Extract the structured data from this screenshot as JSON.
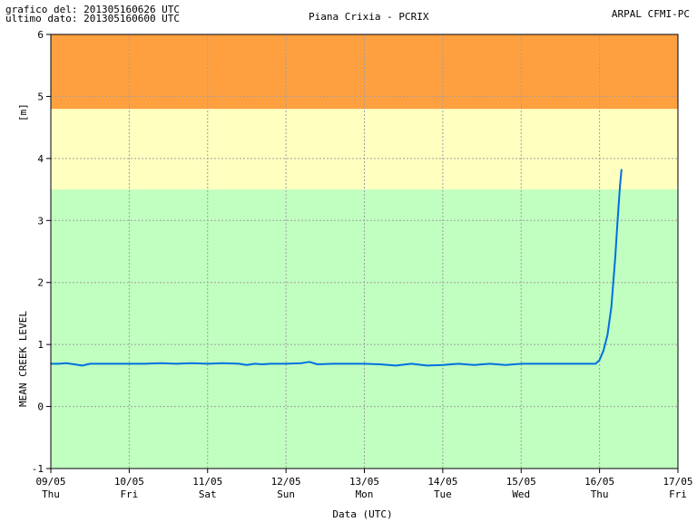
{
  "header": {
    "chart_date_label": "grafico del: 201305160626 UTC",
    "last_data_label": "ultimo dato: 201305160600 UTC",
    "station": "Piana Crixia - PCRIX",
    "organization": "ARPAL CFMI-PC"
  },
  "colors": {
    "zone_green": "#c0ffc0",
    "zone_yellow": "#ffffc0",
    "zone_orange": "#ffa040",
    "series_line": "#0070e0",
    "grid": "#a0a0a0"
  },
  "chart_data": {
    "type": "line",
    "title": "Piana Crixia - PCRIX",
    "xlabel": "Data (UTC)",
    "ylabel_unit": "[m]",
    "ylabel": "MEAN CREEK LEVEL",
    "xlim": [
      0,
      8
    ],
    "ylim": [
      -1,
      6
    ],
    "grid": true,
    "y_ticks": [
      -1,
      0,
      1,
      2,
      3,
      4,
      5,
      6
    ],
    "x_ticks": [
      {
        "x": 0,
        "date": "09/05",
        "day": "Thu"
      },
      {
        "x": 1,
        "date": "10/05",
        "day": "Fri"
      },
      {
        "x": 2,
        "date": "11/05",
        "day": "Sat"
      },
      {
        "x": 3,
        "date": "12/05",
        "day": "Sun"
      },
      {
        "x": 4,
        "date": "13/05",
        "day": "Mon"
      },
      {
        "x": 5,
        "date": "14/05",
        "day": "Tue"
      },
      {
        "x": 6,
        "date": "15/05",
        "day": "Wed"
      },
      {
        "x": 7,
        "date": "16/05",
        "day": "Thu"
      },
      {
        "x": 8,
        "date": "17/05",
        "day": "Fri"
      }
    ],
    "threshold_bands": [
      {
        "from": -1,
        "to": 3.5,
        "color": "#c0ffc0"
      },
      {
        "from": 3.5,
        "to": 4.8,
        "color": "#ffffc0"
      },
      {
        "from": 4.8,
        "to": 6,
        "color": "#ffa040"
      }
    ],
    "series": [
      {
        "x": [
          0,
          0.1,
          0.2,
          0.3,
          0.4,
          0.5,
          0.6,
          0.8,
          1.0,
          1.2,
          1.4,
          1.6,
          1.8,
          2.0,
          2.2,
          2.4,
          2.5,
          2.6,
          2.7,
          2.8,
          3.0,
          3.2,
          3.3,
          3.4,
          3.6,
          3.8,
          4.0,
          4.2,
          4.4,
          4.6,
          4.8,
          5.0,
          5.2,
          5.4,
          5.6,
          5.8,
          6.0,
          6.2,
          6.4,
          6.6,
          6.8,
          6.9,
          6.95,
          7.0,
          7.05,
          7.1,
          7.15,
          7.2,
          7.23,
          7.26,
          7.28
        ],
        "y": [
          0.69,
          0.69,
          0.7,
          0.68,
          0.66,
          0.69,
          0.69,
          0.69,
          0.69,
          0.69,
          0.7,
          0.69,
          0.7,
          0.69,
          0.7,
          0.69,
          0.67,
          0.69,
          0.68,
          0.69,
          0.69,
          0.7,
          0.72,
          0.68,
          0.69,
          0.69,
          0.69,
          0.68,
          0.66,
          0.69,
          0.66,
          0.67,
          0.69,
          0.67,
          0.69,
          0.67,
          0.69,
          0.69,
          0.69,
          0.69,
          0.69,
          0.69,
          0.69,
          0.75,
          0.9,
          1.15,
          1.6,
          2.4,
          3.0,
          3.55,
          3.82
        ]
      }
    ]
  }
}
